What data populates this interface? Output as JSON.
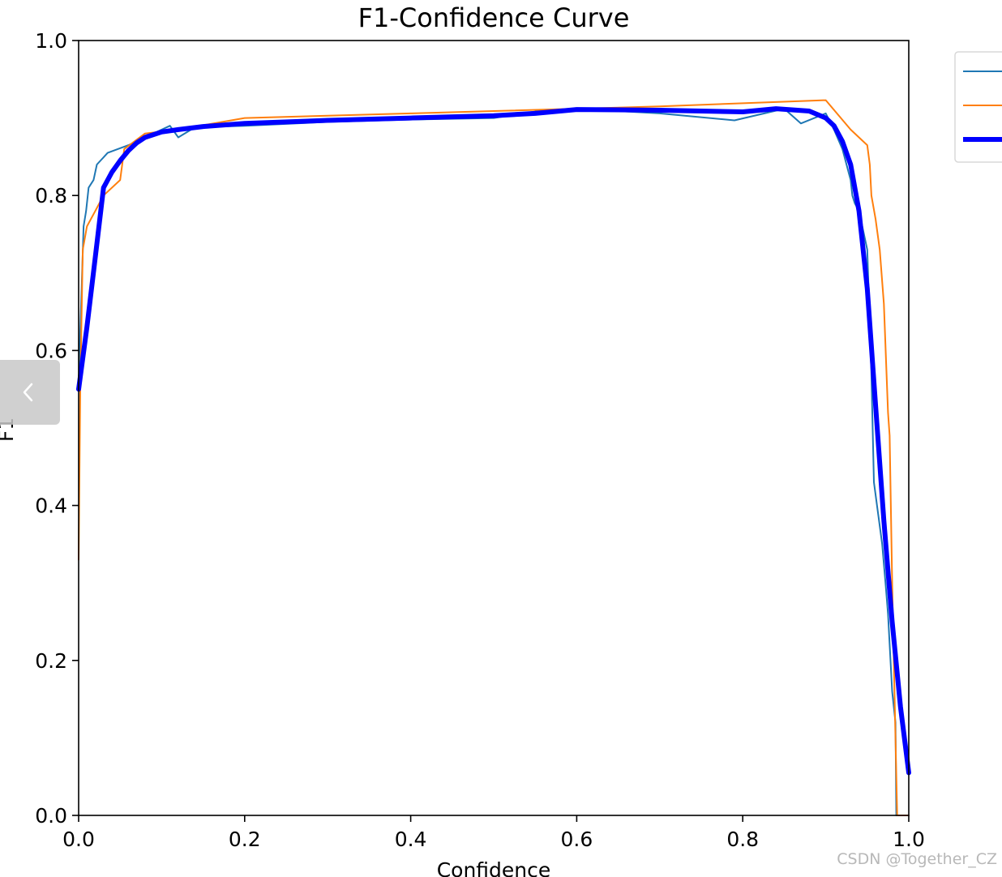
{
  "chart_data": {
    "type": "line",
    "title": "F1-Confidence Curve",
    "xlabel": "Confidence",
    "ylabel": "F1",
    "xlim": [
      0,
      1
    ],
    "ylim": [
      0,
      1
    ],
    "xticks": [
      "0.0",
      "0.2",
      "0.4",
      "0.6",
      "0.8",
      "1.0"
    ],
    "yticks": [
      "0.0",
      "0.2",
      "0.4",
      "0.6",
      "0.8",
      "1.0"
    ],
    "legend_position": "upper-right (partially cropped)",
    "grid": false,
    "series": [
      {
        "color": "#1f77b4",
        "line_width": "thin",
        "x": [
          0.0,
          0.003,
          0.006,
          0.009,
          0.012,
          0.018,
          0.022,
          0.035,
          0.06,
          0.08,
          0.11,
          0.12,
          0.14,
          0.2,
          0.3,
          0.4,
          0.5,
          0.56,
          0.6,
          0.7,
          0.79,
          0.85,
          0.87,
          0.9,
          0.91,
          0.92,
          0.93,
          0.932,
          0.935,
          0.94,
          0.95,
          0.955,
          0.958,
          0.963,
          0.968,
          0.972,
          0.975,
          0.98,
          0.984,
          0.985,
          1.0
        ],
        "y": [
          0.56,
          0.66,
          0.76,
          0.78,
          0.81,
          0.82,
          0.84,
          0.855,
          0.865,
          0.875,
          0.89,
          0.875,
          0.888,
          0.89,
          0.895,
          0.898,
          0.9,
          0.91,
          0.912,
          0.906,
          0.897,
          0.912,
          0.893,
          0.906,
          0.885,
          0.86,
          0.82,
          0.8,
          0.79,
          0.78,
          0.73,
          0.57,
          0.43,
          0.39,
          0.35,
          0.3,
          0.26,
          0.16,
          0.12,
          0.0,
          0.0
        ]
      },
      {
        "color": "#ff7f0e",
        "line_width": "thin",
        "x": [
          0.0,
          0.002,
          0.005,
          0.01,
          0.02,
          0.03,
          0.05,
          0.055,
          0.08,
          0.12,
          0.2,
          0.3,
          0.4,
          0.5,
          0.6,
          0.7,
          0.8,
          0.9,
          0.93,
          0.95,
          0.953,
          0.955,
          0.96,
          0.965,
          0.97,
          0.975,
          0.977,
          0.98,
          0.984,
          0.986,
          0.99,
          1.0
        ],
        "y": [
          0.33,
          0.55,
          0.73,
          0.76,
          0.78,
          0.8,
          0.82,
          0.86,
          0.88,
          0.885,
          0.9,
          0.903,
          0.906,
          0.909,
          0.912,
          0.915,
          0.919,
          0.923,
          0.885,
          0.865,
          0.84,
          0.8,
          0.77,
          0.73,
          0.66,
          0.52,
          0.49,
          0.3,
          0.1,
          0.0,
          0.0,
          0.0
        ]
      },
      {
        "color": "#0000ff",
        "line_width": "thick",
        "x": [
          0.0,
          0.01,
          0.02,
          0.03,
          0.04,
          0.05,
          0.06,
          0.07,
          0.08,
          0.1,
          0.12,
          0.15,
          0.2,
          0.3,
          0.4,
          0.5,
          0.55,
          0.6,
          0.7,
          0.8,
          0.84,
          0.88,
          0.9,
          0.91,
          0.92,
          0.93,
          0.94,
          0.95,
          0.96,
          0.97,
          0.98,
          0.99,
          1.0
        ],
        "y": [
          0.55,
          0.63,
          0.72,
          0.81,
          0.83,
          0.845,
          0.858,
          0.868,
          0.875,
          0.882,
          0.885,
          0.889,
          0.893,
          0.897,
          0.9,
          0.903,
          0.906,
          0.911,
          0.91,
          0.908,
          0.912,
          0.909,
          0.9,
          0.89,
          0.87,
          0.84,
          0.78,
          0.68,
          0.53,
          0.38,
          0.25,
          0.14,
          0.055
        ]
      }
    ]
  },
  "watermark": "CSDN @Together_CZ",
  "nav": {
    "icon": "chevron-left-icon"
  }
}
